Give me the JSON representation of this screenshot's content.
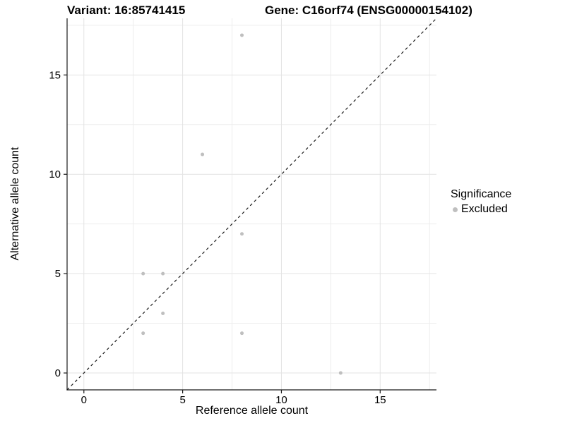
{
  "chart_data": {
    "type": "scatter",
    "title": "Variant: 16:85741415",
    "title_right": "Gene: C16orf74 (ENSG00000154102)",
    "xlabel": "Reference allele count",
    "ylabel": "Alternative allele count",
    "xlim": [
      -0.85,
      17.85
    ],
    "ylim": [
      -0.85,
      17.85
    ],
    "x_major_ticks": [
      0,
      5,
      10,
      15
    ],
    "y_major_ticks": [
      0,
      5,
      10,
      15
    ],
    "x_minor_gridlines": [
      2.5,
      7.5,
      12.5,
      17.5
    ],
    "y_minor_gridlines": [
      2.5,
      7.5,
      12.5,
      17.5
    ],
    "grid": "on",
    "series": [
      {
        "name": "Excluded",
        "marker": "circle",
        "color": "#bfbfbf",
        "points": [
          {
            "x": 3,
            "y": 2
          },
          {
            "x": 3,
            "y": 5
          },
          {
            "x": 4,
            "y": 3
          },
          {
            "x": 4,
            "y": 5
          },
          {
            "x": 6,
            "y": 11
          },
          {
            "x": 8,
            "y": 2
          },
          {
            "x": 8,
            "y": 7
          },
          {
            "x": 8,
            "y": 17
          },
          {
            "x": 13,
            "y": 0
          }
        ]
      }
    ],
    "reference_line": {
      "kind": "identity y = x",
      "style": "dashed",
      "color": "#1a1a1a"
    },
    "legend": {
      "title": "Significance",
      "position": "right-center",
      "entries": [
        {
          "label": "Excluded",
          "color": "#bfbfbf"
        }
      ]
    },
    "colors": {
      "background": "#ffffff",
      "grid_major": "#e3e3e3",
      "grid_minor": "#ededed",
      "axis": "#1a1a1a",
      "text": "#000000",
      "point": "#bfbfbf"
    }
  }
}
